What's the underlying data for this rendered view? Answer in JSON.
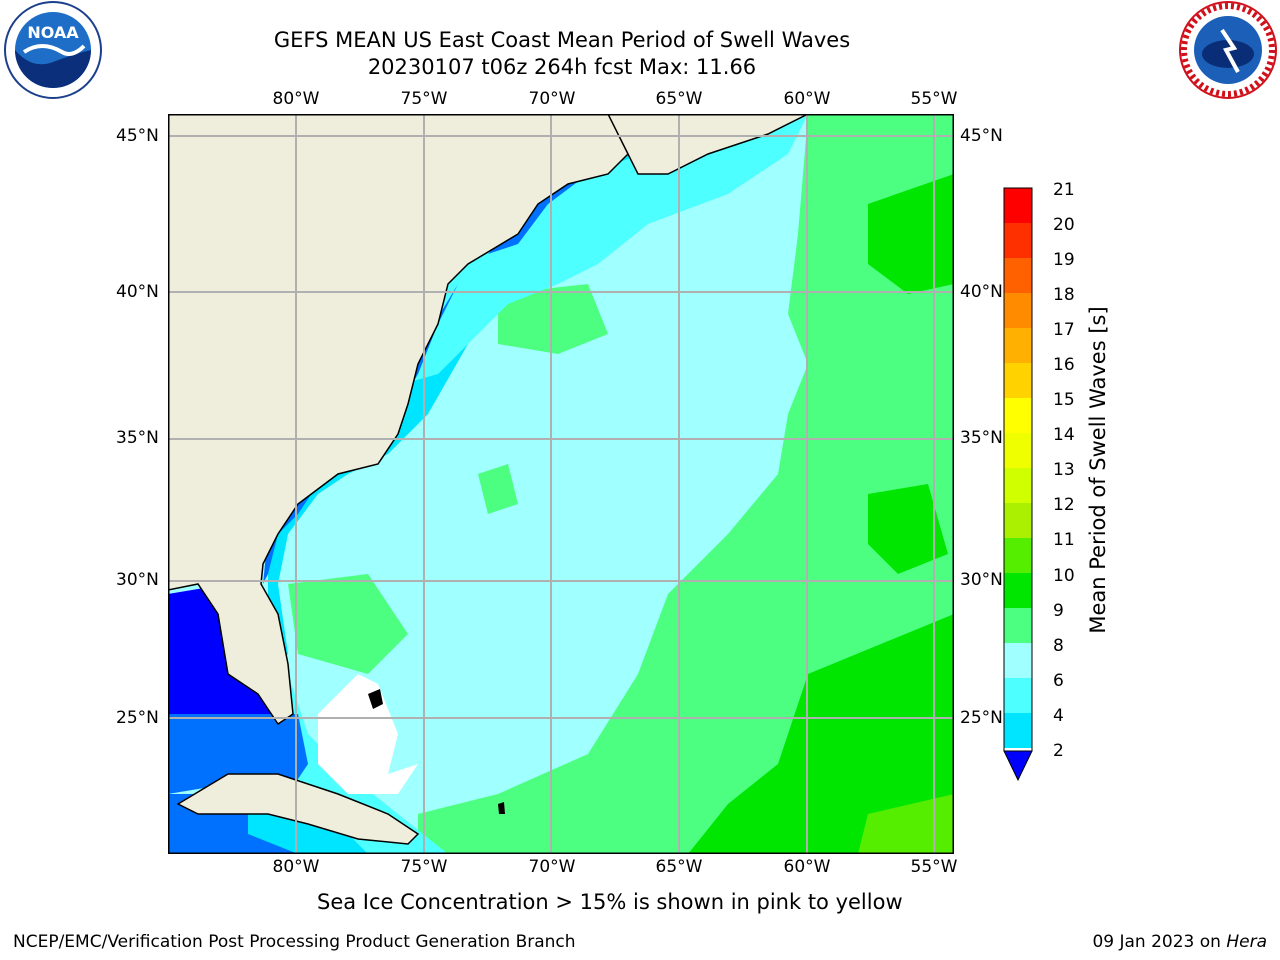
{
  "header": {
    "title_line1": "GEFS MEAN US East Coast Mean Period of Swell Waves",
    "title_line2": "20230107 t06z 264h fcst   Max: 11.66"
  },
  "logos": {
    "left": "noaa-logo",
    "right": "national-weather-service-logo",
    "left_text": "NOAA",
    "right_ring_text": "NATIONAL WEATHER SERVICE"
  },
  "map": {
    "lon_labels": [
      "80°W",
      "75°W",
      "70°W",
      "65°W",
      "60°W",
      "55°W"
    ],
    "lat_labels": [
      "45°N",
      "40°N",
      "35°N",
      "30°N",
      "25°N"
    ],
    "land_color": "#efeddc",
    "grid_color": "#b0b0b0"
  },
  "colorbar": {
    "label": "Mean Period of Swell Waves [s]",
    "ticks": [
      "2",
      "4",
      "6",
      "8",
      "9",
      "10",
      "11",
      "12",
      "13",
      "14",
      "15",
      "16",
      "17",
      "18",
      "19",
      "20",
      "21"
    ],
    "colors": [
      "#0070ff",
      "#00e5ff",
      "#4dffff",
      "#a0ffff",
      "#4dff80",
      "#00e600",
      "#55ee00",
      "#aaf000",
      "#d0ff00",
      "#f0ff00",
      "#ffff00",
      "#ffd200",
      "#ffb000",
      "#ff8c00",
      "#ff6000",
      "#ff3000",
      "#ff0000"
    ],
    "under_color": "#0000ff"
  },
  "footer": {
    "note": "Sea Ice Concentration > 15% is shown in pink to yellow",
    "credit": "NCEP/EMC/Verification Post Processing Product Generation Branch",
    "date": "09 Jan 2023 on",
    "machine": "Hera"
  }
}
